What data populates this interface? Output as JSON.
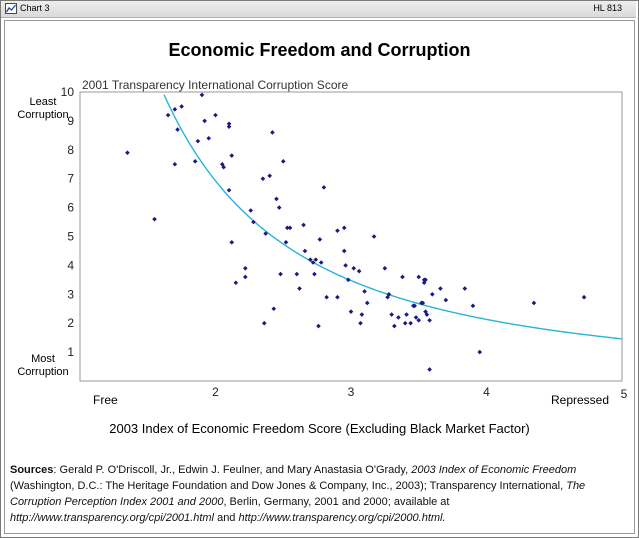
{
  "header": {
    "chart_label": "Chart 3",
    "doc_id": "HL 813"
  },
  "sources": {
    "label": "Sources",
    "part1": ":  Gerald P. O'Driscoll, Jr., Edwin J. Feulner, and Mary Anastasia O'Grady, ",
    "title1": "2003 Index of Economic Freedom",
    "part2": " (Washington, D.C.: The Heritage Foundation and Dow Jones & Company, Inc., 2003); Transparency International, ",
    "title2": "The Corruption Perception Index 2001 and 2000",
    "part3": ", Berlin, Germany, 2001 and 2000; available at ",
    "url1": "http://www.transparency.org/cpi/2001.html",
    "and": " and ",
    "url2": "http://www.transparency.org/cpi/2000.html."
  },
  "chart_data": {
    "type": "scatter",
    "title": "Economic Freedom and Corruption",
    "ylabel": "2001 Transparency International Corruption Score",
    "xlabel": "2003 Index of Economic Freedom Score (Excluding Black Market Factor)",
    "y_top_label": "Least Corruption",
    "y_bottom_label": "Most Corruption",
    "x_left_label": "Free",
    "x_right_label": "Repressed",
    "xlim": [
      1,
      5
    ],
    "ylim": [
      0,
      10
    ],
    "x_ticks": [
      "2",
      "3",
      "4",
      "5"
    ],
    "y_ticks": [
      "1",
      "2",
      "3",
      "4",
      "5",
      "6",
      "7",
      "8",
      "9",
      "10"
    ],
    "colors": {
      "points": "#1a1a80",
      "trend": "#29b4d8"
    },
    "trendline": {
      "type": "power",
      "a": 22.5,
      "b": -1.7
    },
    "points": [
      [
        1.35,
        7.9
      ],
      [
        1.55,
        5.6
      ],
      [
        1.65,
        9.2
      ],
      [
        1.7,
        7.5
      ],
      [
        1.7,
        9.4
      ],
      [
        1.72,
        8.7
      ],
      [
        1.75,
        9.5
      ],
      [
        1.85,
        7.6
      ],
      [
        1.87,
        8.3
      ],
      [
        1.9,
        9.9
      ],
      [
        1.92,
        9.0
      ],
      [
        1.95,
        8.4
      ],
      [
        2.0,
        9.2
      ],
      [
        2.05,
        7.5
      ],
      [
        2.06,
        7.4
      ],
      [
        2.1,
        8.9
      ],
      [
        2.1,
        8.8
      ],
      [
        2.1,
        6.6
      ],
      [
        2.12,
        7.8
      ],
      [
        2.12,
        4.8
      ],
      [
        2.15,
        3.4
      ],
      [
        2.22,
        3.9
      ],
      [
        2.22,
        3.6
      ],
      [
        2.26,
        5.9
      ],
      [
        2.28,
        5.5
      ],
      [
        2.35,
        7.0
      ],
      [
        2.36,
        2.0
      ],
      [
        2.37,
        5.1
      ],
      [
        2.4,
        7.1
      ],
      [
        2.42,
        8.6
      ],
      [
        2.43,
        2.5
      ],
      [
        2.45,
        6.3
      ],
      [
        2.47,
        6.0
      ],
      [
        2.48,
        3.7
      ],
      [
        2.5,
        7.6
      ],
      [
        2.52,
        4.8
      ],
      [
        2.53,
        5.3
      ],
      [
        2.55,
        5.3
      ],
      [
        2.6,
        3.7
      ],
      [
        2.62,
        3.2
      ],
      [
        2.65,
        5.4
      ],
      [
        2.66,
        4.5
      ],
      [
        2.7,
        4.2
      ],
      [
        2.72,
        4.1
      ],
      [
        2.73,
        3.7
      ],
      [
        2.74,
        4.2
      ],
      [
        2.76,
        1.9
      ],
      [
        2.77,
        4.9
      ],
      [
        2.78,
        4.1
      ],
      [
        2.8,
        6.7
      ],
      [
        2.82,
        2.9
      ],
      [
        2.9,
        2.9
      ],
      [
        2.9,
        5.2
      ],
      [
        2.95,
        5.3
      ],
      [
        2.95,
        4.5
      ],
      [
        2.96,
        4.0
      ],
      [
        2.98,
        3.5
      ],
      [
        3.0,
        2.4
      ],
      [
        3.02,
        3.9
      ],
      [
        3.06,
        3.8
      ],
      [
        3.07,
        2.0
      ],
      [
        3.08,
        2.3
      ],
      [
        3.1,
        3.1
      ],
      [
        3.12,
        2.7
      ],
      [
        3.17,
        5.0
      ],
      [
        3.25,
        3.9
      ],
      [
        3.27,
        2.9
      ],
      [
        3.28,
        3.0
      ],
      [
        3.3,
        2.3
      ],
      [
        3.32,
        1.9
      ],
      [
        3.35,
        2.2
      ],
      [
        3.38,
        3.6
      ],
      [
        3.4,
        2.0
      ],
      [
        3.41,
        2.3
      ],
      [
        3.44,
        2.0
      ],
      [
        3.46,
        2.6
      ],
      [
        3.48,
        2.2
      ],
      [
        3.5,
        2.1
      ],
      [
        3.5,
        3.6
      ],
      [
        3.52,
        2.7
      ],
      [
        3.54,
        3.4
      ],
      [
        3.54,
        3.5
      ],
      [
        3.55,
        2.4
      ],
      [
        3.55,
        3.5
      ],
      [
        3.56,
        2.3
      ],
      [
        3.58,
        0.4
      ],
      [
        3.58,
        2.1
      ],
      [
        3.6,
        3.0
      ],
      [
        3.66,
        3.2
      ],
      [
        3.7,
        2.8
      ],
      [
        3.84,
        3.2
      ],
      [
        3.9,
        2.6
      ],
      [
        3.95,
        1.0
      ],
      [
        4.35,
        2.7
      ],
      [
        4.72,
        2.9
      ],
      [
        3.53,
        2.7
      ],
      [
        3.47,
        2.6
      ]
    ]
  }
}
